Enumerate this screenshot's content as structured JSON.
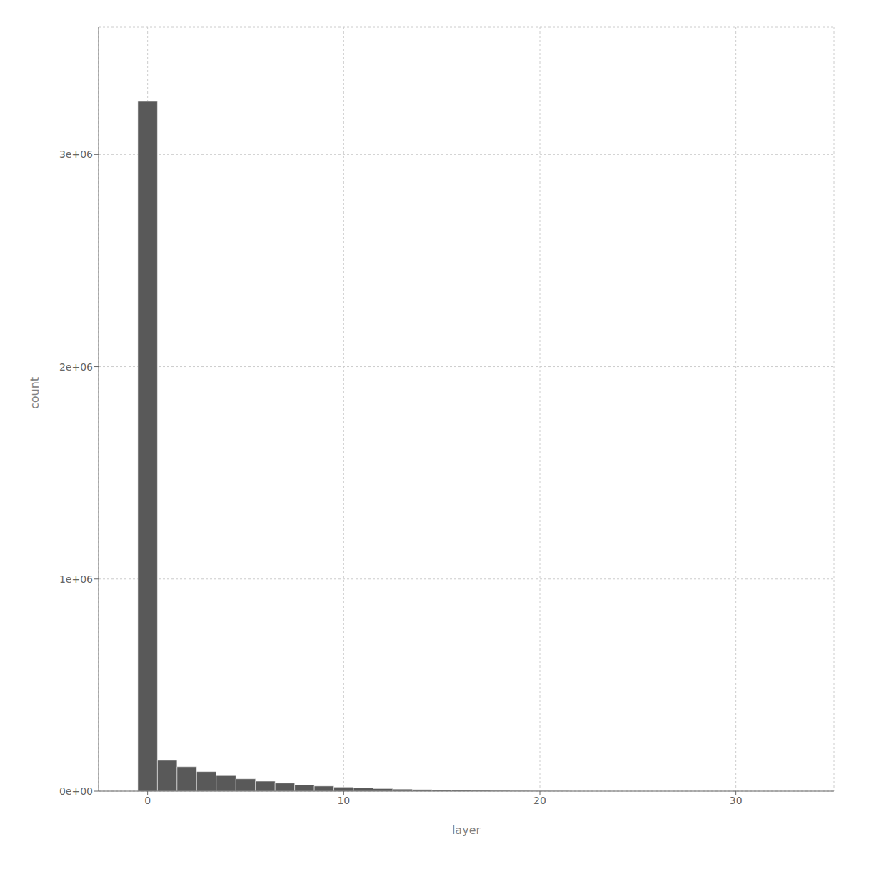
{
  "chart_data": {
    "type": "histogram",
    "xlabel": "layer",
    "ylabel": "count",
    "bins": [
      -0.5,
      0.5,
      1.5,
      2.5,
      3.5,
      4.5,
      5.5,
      6.5,
      7.5,
      8.5,
      9.5,
      10.5,
      11.5,
      12.5,
      13.5,
      14.5,
      15.5,
      16.5,
      17.5,
      18.5,
      19.5,
      20.5,
      21.5
    ],
    "values": [
      3250000,
      145000,
      115000,
      92000,
      73000,
      58000,
      47000,
      38000,
      30000,
      24000,
      19000,
      15000,
      12000,
      9500,
      7500,
      6000,
      4800,
      3800,
      3000,
      2400,
      1900,
      1500
    ],
    "color": "#595959",
    "xlim": [
      -2.5,
      35
    ],
    "ylim": [
      0,
      3600000
    ],
    "xticks": [
      0,
      10,
      20,
      30
    ],
    "yticks": [
      {
        "value": 0,
        "label": "0e+00"
      },
      {
        "value": 1000000,
        "label": "1e+06"
      },
      {
        "value": 2000000,
        "label": "2e+06"
      },
      {
        "value": 3000000,
        "label": "3e+06"
      }
    ],
    "grid": true
  }
}
